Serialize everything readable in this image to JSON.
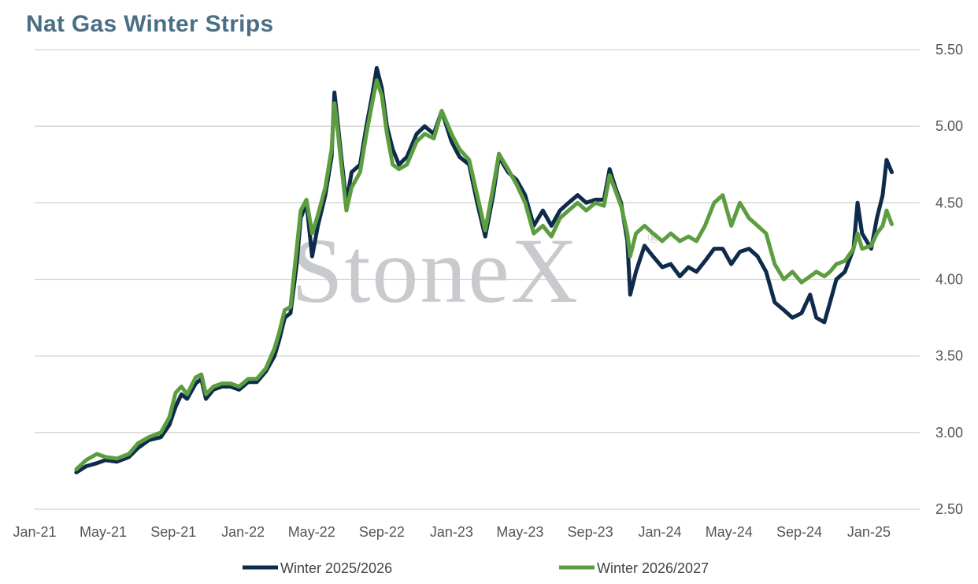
{
  "chart_data": {
    "type": "line",
    "title": "Nat Gas Winter Strips",
    "watermark": "StoneX",
    "watermark_mark": "®",
    "xlabel": "",
    "ylabel": "",
    "x_range": [
      "2021-01-01",
      "2025-03-31"
    ],
    "ylim": [
      2.5,
      5.5
    ],
    "yticks": [
      2.5,
      3.0,
      3.5,
      4.0,
      4.5,
      5.0,
      5.5
    ],
    "ytick_labels": [
      "2.50",
      "3.00",
      "3.50",
      "4.00",
      "4.50",
      "5.00",
      "5.50"
    ],
    "xticks": [
      {
        "date": "2021-01-01",
        "label": "Jan-21"
      },
      {
        "date": "2021-05-01",
        "label": "May-21"
      },
      {
        "date": "2021-09-01",
        "label": "Sep-21"
      },
      {
        "date": "2022-01-01",
        "label": "Jan-22"
      },
      {
        "date": "2022-05-01",
        "label": "May-22"
      },
      {
        "date": "2022-09-01",
        "label": "Sep-22"
      },
      {
        "date": "2023-01-01",
        "label": "Jan-23"
      },
      {
        "date": "2023-05-01",
        "label": "May-23"
      },
      {
        "date": "2023-09-01",
        "label": "Sep-23"
      },
      {
        "date": "2024-01-01",
        "label": "Jan-24"
      },
      {
        "date": "2024-05-01",
        "label": "May-24"
      },
      {
        "date": "2024-09-01",
        "label": "Sep-24"
      },
      {
        "date": "2025-01-01",
        "label": "Jan-25"
      }
    ],
    "grid": true,
    "y_axis_side": "right",
    "legend_position": "bottom",
    "series": [
      {
        "name": "Winter 2025/2026",
        "color": "#0f2b4c",
        "points": [
          [
            "2021-03-15",
            2.74
          ],
          [
            "2021-04-01",
            2.78
          ],
          [
            "2021-04-20",
            2.8
          ],
          [
            "2021-05-05",
            2.82
          ],
          [
            "2021-05-25",
            2.81
          ],
          [
            "2021-06-15",
            2.84
          ],
          [
            "2021-07-01",
            2.9
          ],
          [
            "2021-07-20",
            2.95
          ],
          [
            "2021-08-10",
            2.97
          ],
          [
            "2021-08-25",
            3.05
          ],
          [
            "2021-09-05",
            3.17
          ],
          [
            "2021-09-15",
            3.25
          ],
          [
            "2021-09-25",
            3.22
          ],
          [
            "2021-10-10",
            3.32
          ],
          [
            "2021-10-20",
            3.35
          ],
          [
            "2021-10-28",
            3.22
          ],
          [
            "2021-11-10",
            3.28
          ],
          [
            "2021-11-25",
            3.3
          ],
          [
            "2021-12-10",
            3.3
          ],
          [
            "2021-12-25",
            3.28
          ],
          [
            "2022-01-10",
            3.33
          ],
          [
            "2022-01-25",
            3.33
          ],
          [
            "2022-02-10",
            3.4
          ],
          [
            "2022-02-25",
            3.5
          ],
          [
            "2022-03-05",
            3.6
          ],
          [
            "2022-03-15",
            3.75
          ],
          [
            "2022-03-25",
            3.78
          ],
          [
            "2022-04-05",
            4.1
          ],
          [
            "2022-04-12",
            4.4
          ],
          [
            "2022-04-22",
            4.5
          ],
          [
            "2022-05-02",
            4.15
          ],
          [
            "2022-05-12",
            4.35
          ],
          [
            "2022-05-25",
            4.55
          ],
          [
            "2022-06-05",
            4.8
          ],
          [
            "2022-06-10",
            5.22
          ],
          [
            "2022-06-15",
            5.05
          ],
          [
            "2022-06-22",
            4.8
          ],
          [
            "2022-07-01",
            4.5
          ],
          [
            "2022-07-10",
            4.7
          ],
          [
            "2022-07-25",
            4.75
          ],
          [
            "2022-08-05",
            5.0
          ],
          [
            "2022-08-15",
            5.2
          ],
          [
            "2022-08-23",
            5.38
          ],
          [
            "2022-09-01",
            5.25
          ],
          [
            "2022-09-10",
            5.0
          ],
          [
            "2022-09-20",
            4.85
          ],
          [
            "2022-10-01",
            4.75
          ],
          [
            "2022-10-15",
            4.8
          ],
          [
            "2022-11-01",
            4.95
          ],
          [
            "2022-11-15",
            5.0
          ],
          [
            "2022-12-01",
            4.95
          ],
          [
            "2022-12-15",
            5.1
          ],
          [
            "2023-01-01",
            4.9
          ],
          [
            "2023-01-15",
            4.8
          ],
          [
            "2023-02-01",
            4.75
          ],
          [
            "2023-02-15",
            4.5
          ],
          [
            "2023-03-01",
            4.28
          ],
          [
            "2023-03-15",
            4.55
          ],
          [
            "2023-03-25",
            4.8
          ],
          [
            "2023-04-10",
            4.7
          ],
          [
            "2023-04-25",
            4.65
          ],
          [
            "2023-05-10",
            4.55
          ],
          [
            "2023-05-25",
            4.35
          ],
          [
            "2023-06-10",
            4.45
          ],
          [
            "2023-06-25",
            4.35
          ],
          [
            "2023-07-10",
            4.45
          ],
          [
            "2023-07-25",
            4.5
          ],
          [
            "2023-08-10",
            4.55
          ],
          [
            "2023-08-25",
            4.5
          ],
          [
            "2023-09-10",
            4.52
          ],
          [
            "2023-09-25",
            4.52
          ],
          [
            "2023-10-05",
            4.72
          ],
          [
            "2023-10-15",
            4.6
          ],
          [
            "2023-10-25",
            4.5
          ],
          [
            "2023-11-05",
            4.25
          ],
          [
            "2023-11-10",
            3.9
          ],
          [
            "2023-11-20",
            4.05
          ],
          [
            "2023-12-05",
            4.22
          ],
          [
            "2023-12-20",
            4.15
          ],
          [
            "2024-01-05",
            4.08
          ],
          [
            "2024-01-20",
            4.1
          ],
          [
            "2024-02-05",
            4.02
          ],
          [
            "2024-02-20",
            4.08
          ],
          [
            "2024-03-05",
            4.05
          ],
          [
            "2024-03-20",
            4.12
          ],
          [
            "2024-04-05",
            4.2
          ],
          [
            "2024-04-20",
            4.2
          ],
          [
            "2024-05-05",
            4.1
          ],
          [
            "2024-05-20",
            4.18
          ],
          [
            "2024-06-05",
            4.2
          ],
          [
            "2024-06-20",
            4.15
          ],
          [
            "2024-07-05",
            4.05
          ],
          [
            "2024-07-20",
            3.85
          ],
          [
            "2024-08-05",
            3.8
          ],
          [
            "2024-08-20",
            3.75
          ],
          [
            "2024-09-05",
            3.78
          ],
          [
            "2024-09-20",
            3.9
          ],
          [
            "2024-10-01",
            3.75
          ],
          [
            "2024-10-15",
            3.72
          ],
          [
            "2024-10-25",
            3.85
          ],
          [
            "2024-11-05",
            4.0
          ],
          [
            "2024-11-20",
            4.05
          ],
          [
            "2024-12-05",
            4.2
          ],
          [
            "2024-12-12",
            4.5
          ],
          [
            "2024-12-20",
            4.3
          ],
          [
            "2025-01-05",
            4.2
          ],
          [
            "2025-01-15",
            4.4
          ],
          [
            "2025-01-25",
            4.55
          ],
          [
            "2025-02-01",
            4.78
          ],
          [
            "2025-02-10",
            4.7
          ]
        ]
      },
      {
        "name": "Winter 2026/2027",
        "color": "#5c9e3f",
        "points": [
          [
            "2021-03-15",
            2.76
          ],
          [
            "2021-04-01",
            2.82
          ],
          [
            "2021-04-20",
            2.86
          ],
          [
            "2021-05-05",
            2.84
          ],
          [
            "2021-05-25",
            2.83
          ],
          [
            "2021-06-15",
            2.86
          ],
          [
            "2021-07-01",
            2.93
          ],
          [
            "2021-07-20",
            2.97
          ],
          [
            "2021-08-10",
            3.0
          ],
          [
            "2021-08-25",
            3.1
          ],
          [
            "2021-09-05",
            3.26
          ],
          [
            "2021-09-15",
            3.3
          ],
          [
            "2021-09-25",
            3.25
          ],
          [
            "2021-10-10",
            3.36
          ],
          [
            "2021-10-20",
            3.38
          ],
          [
            "2021-10-28",
            3.25
          ],
          [
            "2021-11-10",
            3.3
          ],
          [
            "2021-11-25",
            3.32
          ],
          [
            "2021-12-10",
            3.32
          ],
          [
            "2021-12-25",
            3.3
          ],
          [
            "2022-01-10",
            3.35
          ],
          [
            "2022-01-25",
            3.35
          ],
          [
            "2022-02-10",
            3.42
          ],
          [
            "2022-02-25",
            3.55
          ],
          [
            "2022-03-05",
            3.65
          ],
          [
            "2022-03-15",
            3.8
          ],
          [
            "2022-03-25",
            3.82
          ],
          [
            "2022-04-05",
            4.2
          ],
          [
            "2022-04-12",
            4.45
          ],
          [
            "2022-04-22",
            4.52
          ],
          [
            "2022-05-02",
            4.3
          ],
          [
            "2022-05-12",
            4.42
          ],
          [
            "2022-05-25",
            4.6
          ],
          [
            "2022-06-05",
            4.85
          ],
          [
            "2022-06-10",
            5.15
          ],
          [
            "2022-06-15",
            5.0
          ],
          [
            "2022-06-22",
            4.75
          ],
          [
            "2022-07-01",
            4.45
          ],
          [
            "2022-07-10",
            4.6
          ],
          [
            "2022-07-25",
            4.7
          ],
          [
            "2022-08-05",
            4.95
          ],
          [
            "2022-08-15",
            5.15
          ],
          [
            "2022-08-23",
            5.3
          ],
          [
            "2022-09-01",
            5.2
          ],
          [
            "2022-09-10",
            4.95
          ],
          [
            "2022-09-20",
            4.75
          ],
          [
            "2022-10-01",
            4.72
          ],
          [
            "2022-10-15",
            4.75
          ],
          [
            "2022-11-01",
            4.9
          ],
          [
            "2022-11-15",
            4.95
          ],
          [
            "2022-12-01",
            4.92
          ],
          [
            "2022-12-15",
            5.1
          ],
          [
            "2023-01-01",
            4.95
          ],
          [
            "2023-01-15",
            4.85
          ],
          [
            "2023-02-01",
            4.78
          ],
          [
            "2023-02-15",
            4.55
          ],
          [
            "2023-03-01",
            4.32
          ],
          [
            "2023-03-15",
            4.6
          ],
          [
            "2023-03-25",
            4.82
          ],
          [
            "2023-04-10",
            4.72
          ],
          [
            "2023-04-25",
            4.62
          ],
          [
            "2023-05-10",
            4.5
          ],
          [
            "2023-05-25",
            4.3
          ],
          [
            "2023-06-10",
            4.35
          ],
          [
            "2023-06-25",
            4.28
          ],
          [
            "2023-07-10",
            4.4
          ],
          [
            "2023-07-25",
            4.45
          ],
          [
            "2023-08-10",
            4.5
          ],
          [
            "2023-08-25",
            4.45
          ],
          [
            "2023-09-10",
            4.5
          ],
          [
            "2023-09-25",
            4.48
          ],
          [
            "2023-10-05",
            4.68
          ],
          [
            "2023-10-15",
            4.58
          ],
          [
            "2023-10-25",
            4.48
          ],
          [
            "2023-11-05",
            4.3
          ],
          [
            "2023-11-10",
            4.15
          ],
          [
            "2023-11-20",
            4.3
          ],
          [
            "2023-12-05",
            4.35
          ],
          [
            "2023-12-20",
            4.3
          ],
          [
            "2024-01-05",
            4.25
          ],
          [
            "2024-01-20",
            4.3
          ],
          [
            "2024-02-05",
            4.25
          ],
          [
            "2024-02-20",
            4.28
          ],
          [
            "2024-03-05",
            4.25
          ],
          [
            "2024-03-20",
            4.35
          ],
          [
            "2024-04-05",
            4.5
          ],
          [
            "2024-04-20",
            4.55
          ],
          [
            "2024-05-05",
            4.35
          ],
          [
            "2024-05-20",
            4.5
          ],
          [
            "2024-06-05",
            4.4
          ],
          [
            "2024-06-20",
            4.35
          ],
          [
            "2024-07-05",
            4.3
          ],
          [
            "2024-07-20",
            4.1
          ],
          [
            "2024-08-05",
            4.0
          ],
          [
            "2024-08-20",
            4.05
          ],
          [
            "2024-09-05",
            3.98
          ],
          [
            "2024-09-20",
            4.02
          ],
          [
            "2024-10-01",
            4.05
          ],
          [
            "2024-10-15",
            4.02
          ],
          [
            "2024-10-25",
            4.05
          ],
          [
            "2024-11-05",
            4.1
          ],
          [
            "2024-11-20",
            4.12
          ],
          [
            "2024-12-05",
            4.2
          ],
          [
            "2024-12-12",
            4.3
          ],
          [
            "2024-12-20",
            4.2
          ],
          [
            "2025-01-05",
            4.22
          ],
          [
            "2025-01-15",
            4.3
          ],
          [
            "2025-01-25",
            4.35
          ],
          [
            "2025-02-01",
            4.45
          ],
          [
            "2025-02-10",
            4.36
          ]
        ]
      }
    ]
  }
}
